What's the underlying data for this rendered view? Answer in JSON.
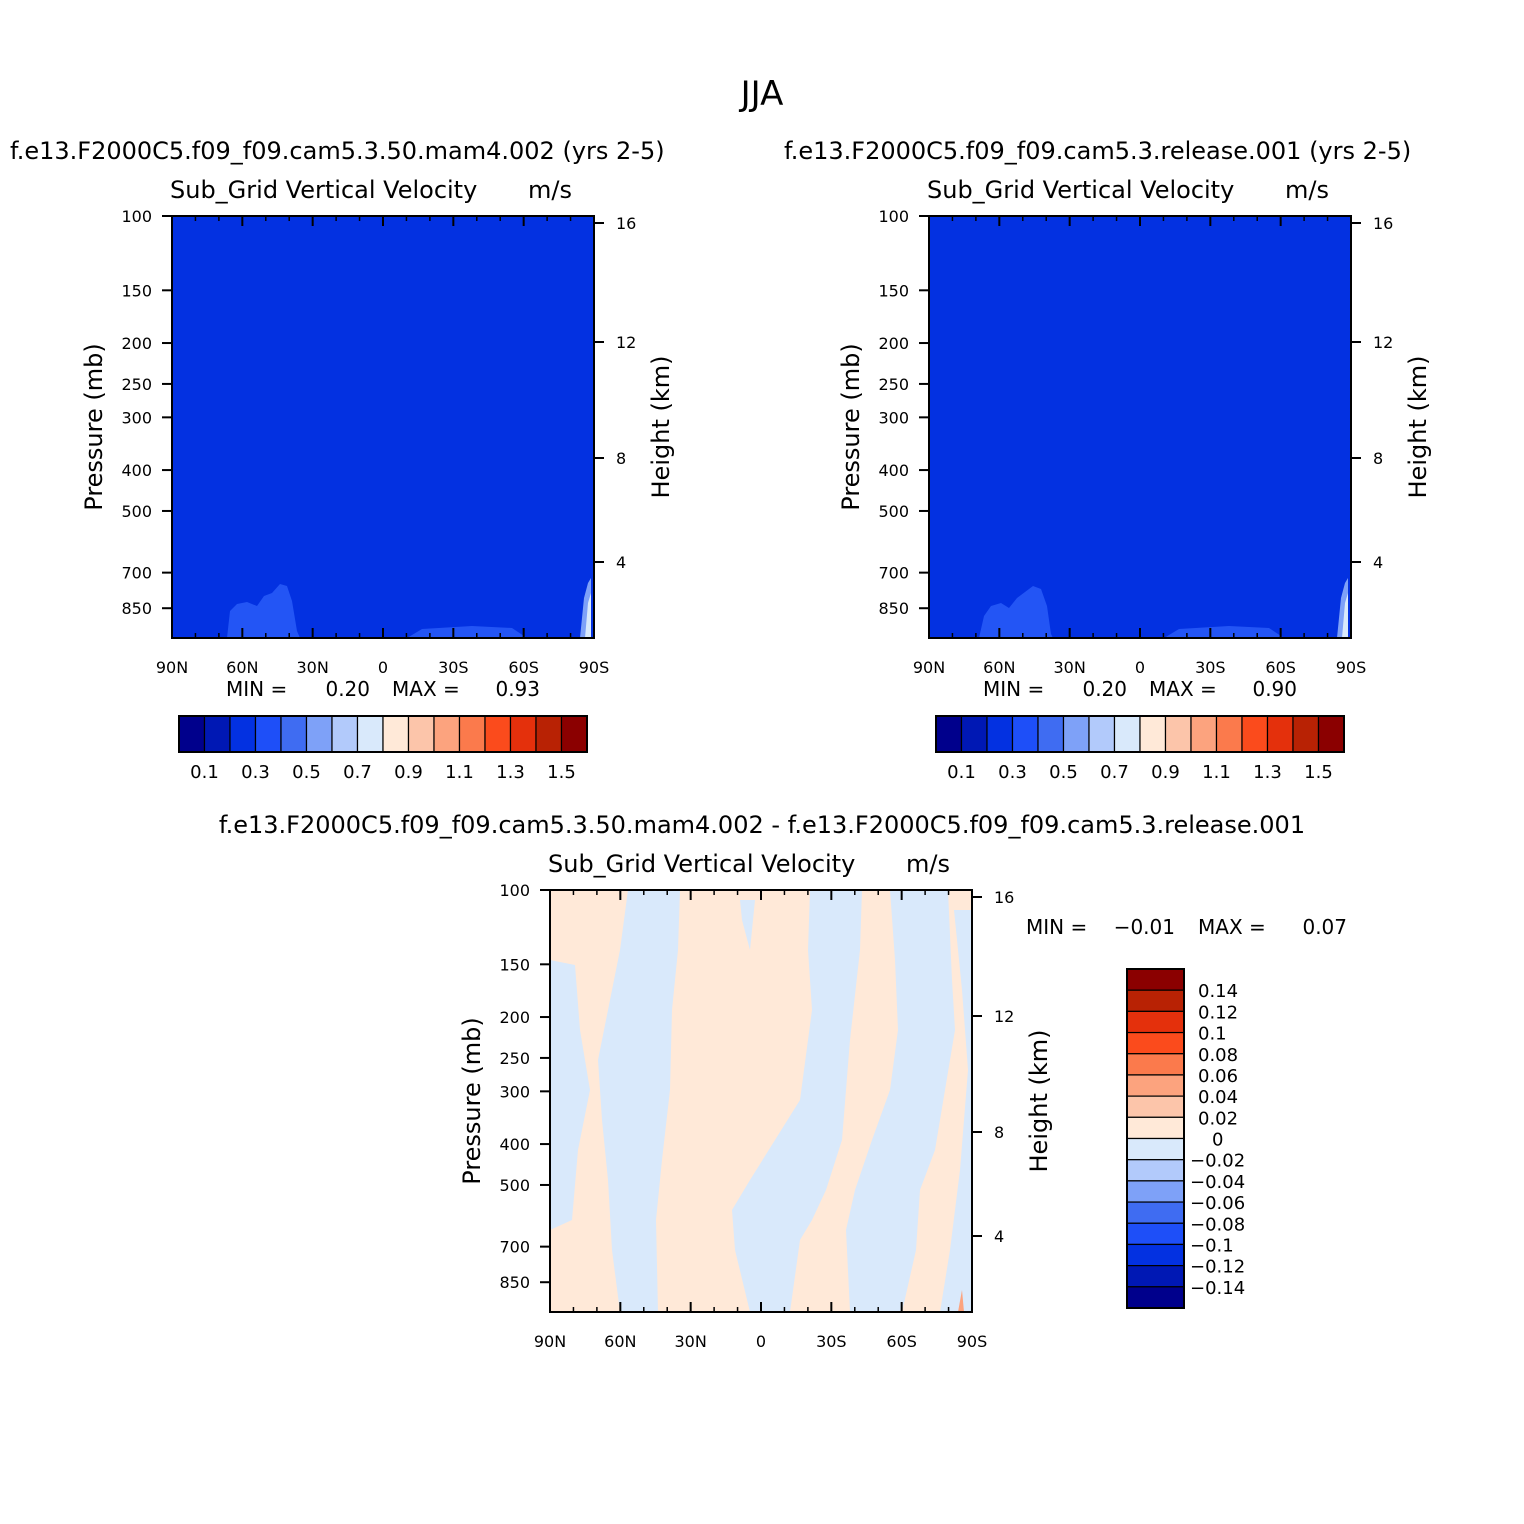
{
  "figure": {
    "season": "JJA",
    "colors": {
      "field_fill": "#0331e1",
      "field_fill_light": "#2355f5",
      "diff_positive": "#ffe9d8",
      "diff_negative": "#d9e9fb"
    }
  },
  "chart_data": [
    {
      "type": "heatmap",
      "panel": "test-case",
      "title": "f.e13.F2000C5.f09_f09.cam5.3.50.mam4.002 (yrs 2-5)",
      "field_label": "Sub_Grid Vertical Velocity",
      "units": "m/s",
      "ylabel": "Pressure (mb)",
      "ylabel_right": "Height (km)",
      "x_ticks": [
        "90N",
        "60N",
        "30N",
        "0",
        "30S",
        "60S",
        "90S"
      ],
      "y_ticks": [
        100,
        150,
        200,
        250,
        300,
        400,
        500,
        700,
        850
      ],
      "y_ticks_right": [
        16,
        12,
        8,
        4
      ],
      "y_scale": "log",
      "ylim": [
        100,
        1000
      ],
      "xlim": [
        "90N",
        "90S"
      ],
      "min_label": "MIN =",
      "min_value": "0.20",
      "max_label": "MAX =",
      "max_value": "0.93",
      "colorbar_labels": [
        "0.1",
        "0.3",
        "0.5",
        "0.7",
        "0.9",
        "1.1",
        "1.3",
        "1.5"
      ],
      "colorbar_colors": [
        "#00008c",
        "#0018b4",
        "#0331e1",
        "#1e4ff8",
        "#3f6cf2",
        "#7ea1f8",
        "#b2cafb",
        "#d9e9fb",
        "#ffe9d8",
        "#fcc5aa",
        "#fca37e",
        "#fb7a4c",
        "#fb4b1c",
        "#e4300c",
        "#b82204",
        "#8b0000"
      ]
    },
    {
      "type": "heatmap",
      "panel": "control-case",
      "title": "f.e13.F2000C5.f09_f09.cam5.3.release.001 (yrs 2-5)",
      "field_label": "Sub_Grid Vertical Velocity",
      "units": "m/s",
      "ylabel": "Pressure (mb)",
      "ylabel_right": "Height (km)",
      "x_ticks": [
        "90N",
        "60N",
        "30N",
        "0",
        "30S",
        "60S",
        "90S"
      ],
      "y_ticks": [
        100,
        150,
        200,
        250,
        300,
        400,
        500,
        700,
        850
      ],
      "y_ticks_right": [
        16,
        12,
        8,
        4
      ],
      "y_scale": "log",
      "ylim": [
        100,
        1000
      ],
      "xlim": [
        "90N",
        "90S"
      ],
      "min_label": "MIN =",
      "min_value": "0.20",
      "max_label": "MAX =",
      "max_value": "0.90",
      "colorbar_labels": [
        "0.1",
        "0.3",
        "0.5",
        "0.7",
        "0.9",
        "1.1",
        "1.3",
        "1.5"
      ],
      "colorbar_colors": [
        "#00008c",
        "#0018b4",
        "#0331e1",
        "#1e4ff8",
        "#3f6cf2",
        "#7ea1f8",
        "#b2cafb",
        "#d9e9fb",
        "#ffe9d8",
        "#fcc5aa",
        "#fca37e",
        "#fb7a4c",
        "#fb4b1c",
        "#e4300c",
        "#b82204",
        "#8b0000"
      ]
    },
    {
      "type": "heatmap",
      "panel": "difference",
      "title": "f.e13.F2000C5.f09_f09.cam5.3.50.mam4.002 - f.e13.F2000C5.f09_f09.cam5.3.release.001",
      "field_label": "Sub_Grid Vertical Velocity",
      "units": "m/s",
      "ylabel": "Pressure (mb)",
      "ylabel_right": "Height (km)",
      "x_ticks": [
        "90N",
        "60N",
        "30N",
        "0",
        "30S",
        "60S",
        "90S"
      ],
      "y_ticks": [
        100,
        150,
        200,
        250,
        300,
        400,
        500,
        700,
        850
      ],
      "y_ticks_right": [
        16,
        12,
        8,
        4
      ],
      "y_scale": "log",
      "ylim": [
        100,
        1000
      ],
      "xlim": [
        "90N",
        "90S"
      ],
      "min_label": "MIN =",
      "min_value": "-0.01",
      "max_label": "MAX =",
      "max_value": "0.07",
      "colorbar_labels": [
        "0.14",
        "0.12",
        "0.1",
        "0.08",
        "0.06",
        "0.04",
        "0.02",
        "0",
        "-0.02",
        "-0.04",
        "-0.06",
        "-0.08",
        "-0.1",
        "-0.12",
        "-0.14"
      ],
      "colorbar_colors": [
        "#8b0000",
        "#b82204",
        "#e4300c",
        "#fb4b1c",
        "#fb7a4c",
        "#fca37e",
        "#fcc5aa",
        "#ffe9d8",
        "#d9e9fb",
        "#b2cafb",
        "#7ea1f8",
        "#3f6cf2",
        "#1e4ff8",
        "#0331e1",
        "#0018b4",
        "#00008c"
      ]
    }
  ]
}
